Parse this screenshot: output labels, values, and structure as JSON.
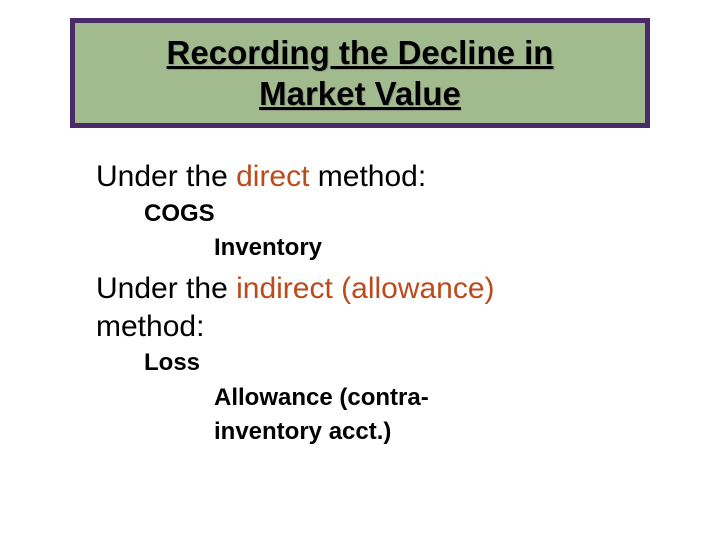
{
  "slide": {
    "background_color": "#ffffff",
    "title": {
      "line1": "Recording the Decline in",
      "line2": "Market Value",
      "box_fill": "#a2bb8e",
      "box_border": "#4b2a6b",
      "text_color": "#000000",
      "fontsize": 33
    },
    "accent_color": "#bb4a1c",
    "body_text_color": "#000000",
    "main_fontsize": 30,
    "sub_fontsize": 24,
    "method1": {
      "prefix": "Under the ",
      "keyword": "direct",
      "suffix": " method:",
      "debit": "COGS",
      "credit": "Inventory"
    },
    "method2": {
      "prefix": "Under the ",
      "keyword": "indirect (allowance)",
      "suffix": "method:",
      "debit": "Loss",
      "credit_line1": "Allowance (contra-",
      "credit_line2": "inventory acct.)"
    }
  }
}
